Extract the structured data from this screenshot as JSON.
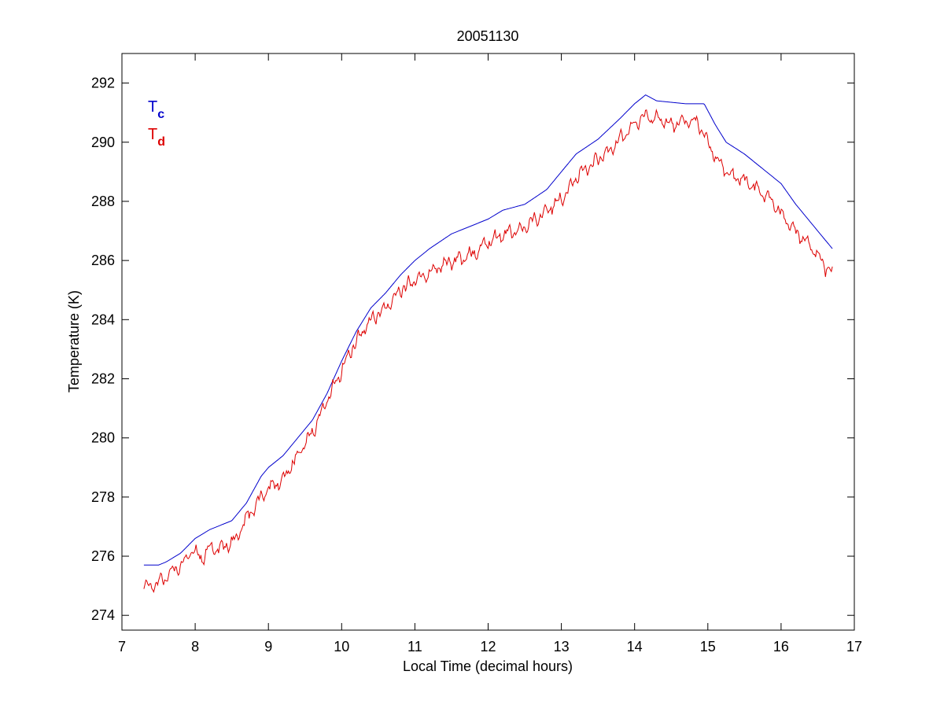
{
  "chart_data": {
    "type": "line",
    "title": "20051130",
    "xlabel": "Local Time (decimal hours)",
    "ylabel": "Temperature (K)",
    "xlim": [
      7,
      17
    ],
    "ylim": [
      273.5,
      293
    ],
    "xticks": [
      7,
      8,
      9,
      10,
      11,
      12,
      13,
      14,
      15,
      16,
      17
    ],
    "yticks": [
      274,
      276,
      278,
      280,
      282,
      284,
      286,
      288,
      290,
      292
    ],
    "grid": false,
    "legend_position": "top-left",
    "series": [
      {
        "name_main": "T",
        "name_sub": "c",
        "color": "#0000cc",
        "noise": 0,
        "points": [
          [
            7.3,
            275.7
          ],
          [
            7.5,
            275.7
          ],
          [
            7.6,
            275.8
          ],
          [
            7.8,
            276.1
          ],
          [
            8.0,
            276.6
          ],
          [
            8.2,
            276.9
          ],
          [
            8.5,
            277.2
          ],
          [
            8.7,
            277.8
          ],
          [
            8.9,
            278.7
          ],
          [
            9.0,
            279.0
          ],
          [
            9.2,
            279.4
          ],
          [
            9.4,
            280.0
          ],
          [
            9.6,
            280.6
          ],
          [
            9.8,
            281.5
          ],
          [
            10.0,
            282.6
          ],
          [
            10.2,
            283.6
          ],
          [
            10.4,
            284.4
          ],
          [
            10.6,
            284.9
          ],
          [
            10.8,
            285.5
          ],
          [
            11.0,
            286.0
          ],
          [
            11.2,
            286.4
          ],
          [
            11.5,
            286.9
          ],
          [
            11.8,
            287.2
          ],
          [
            12.0,
            287.4
          ],
          [
            12.2,
            287.7
          ],
          [
            12.5,
            287.9
          ],
          [
            12.8,
            288.4
          ],
          [
            13.0,
            289.0
          ],
          [
            13.2,
            289.6
          ],
          [
            13.5,
            290.1
          ],
          [
            13.8,
            290.8
          ],
          [
            14.0,
            291.3
          ],
          [
            14.15,
            291.6
          ],
          [
            14.3,
            291.4
          ],
          [
            14.5,
            291.35
          ],
          [
            14.7,
            291.3
          ],
          [
            14.95,
            291.3
          ],
          [
            15.1,
            290.6
          ],
          [
            15.25,
            290.0
          ],
          [
            15.5,
            289.6
          ],
          [
            15.8,
            289.0
          ],
          [
            16.0,
            288.6
          ],
          [
            16.2,
            287.9
          ],
          [
            16.4,
            287.3
          ],
          [
            16.6,
            286.7
          ],
          [
            16.7,
            286.4
          ]
        ]
      },
      {
        "name_main": "T",
        "name_sub": "d",
        "color": "#dd0000",
        "noise": 0.25,
        "points": [
          [
            7.3,
            274.9
          ],
          [
            7.5,
            275.1
          ],
          [
            7.7,
            275.5
          ],
          [
            7.85,
            275.8
          ],
          [
            7.95,
            276.2
          ],
          [
            8.1,
            275.9
          ],
          [
            8.2,
            276.3
          ],
          [
            8.4,
            276.3
          ],
          [
            8.55,
            276.6
          ],
          [
            8.7,
            277.3
          ],
          [
            8.9,
            278.0
          ],
          [
            9.0,
            278.3
          ],
          [
            9.2,
            278.6
          ],
          [
            9.4,
            279.4
          ],
          [
            9.6,
            280.2
          ],
          [
            9.8,
            281.3
          ],
          [
            10.0,
            282.3
          ],
          [
            10.2,
            283.3
          ],
          [
            10.4,
            284.0
          ],
          [
            10.6,
            284.4
          ],
          [
            10.8,
            285.0
          ],
          [
            11.0,
            285.3
          ],
          [
            11.2,
            285.6
          ],
          [
            11.5,
            286.0
          ],
          [
            11.8,
            286.2
          ],
          [
            12.0,
            286.6
          ],
          [
            12.2,
            286.9
          ],
          [
            12.5,
            287.1
          ],
          [
            12.8,
            287.7
          ],
          [
            13.0,
            288.1
          ],
          [
            13.2,
            288.8
          ],
          [
            13.5,
            289.4
          ],
          [
            13.8,
            290.1
          ],
          [
            14.0,
            290.6
          ],
          [
            14.15,
            290.9
          ],
          [
            14.3,
            290.8
          ],
          [
            14.5,
            290.6
          ],
          [
            14.7,
            290.7
          ],
          [
            14.85,
            290.7
          ],
          [
            15.0,
            290.0
          ],
          [
            15.15,
            289.3
          ],
          [
            15.3,
            288.9
          ],
          [
            15.5,
            288.7
          ],
          [
            15.8,
            288.2
          ],
          [
            16.0,
            287.6
          ],
          [
            16.2,
            287.0
          ],
          [
            16.4,
            286.5
          ],
          [
            16.6,
            285.8
          ],
          [
            16.7,
            285.6
          ]
        ]
      }
    ]
  }
}
